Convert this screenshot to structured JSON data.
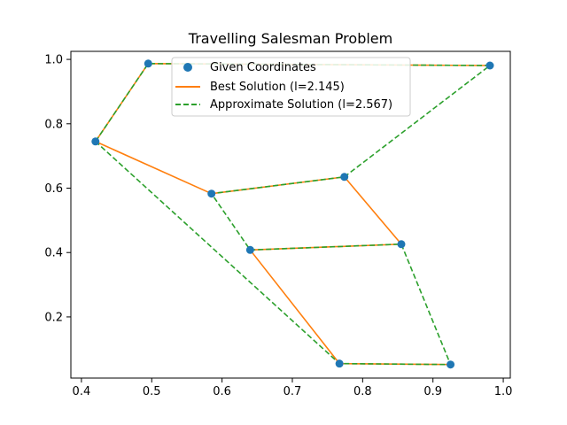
{
  "chart_data": {
    "type": "line",
    "title": "Travelling Salesman Problem",
    "xlabel": "",
    "ylabel": "",
    "xlim": [
      0.385,
      1.01
    ],
    "ylim": [
      0.01,
      1.025
    ],
    "xticks": [
      0.4,
      0.5,
      0.6,
      0.7,
      0.8,
      0.9,
      1.0
    ],
    "xtick_labels": [
      "0.4",
      "0.5",
      "0.6",
      "0.7",
      "0.8",
      "0.9",
      "1.0"
    ],
    "yticks": [
      0.2,
      0.4,
      0.6,
      0.8,
      1.0
    ],
    "ytick_labels": [
      "0.2",
      "0.4",
      "0.6",
      "0.8",
      "1.0"
    ],
    "grid": false,
    "legend_position": "top-center",
    "points": [
      {
        "x": 0.495,
        "y": 0.987
      },
      {
        "x": 0.981,
        "y": 0.981
      },
      {
        "x": 0.42,
        "y": 0.745
      },
      {
        "x": 0.774,
        "y": 0.635
      },
      {
        "x": 0.585,
        "y": 0.583
      },
      {
        "x": 0.855,
        "y": 0.426
      },
      {
        "x": 0.64,
        "y": 0.408
      },
      {
        "x": 0.767,
        "y": 0.055
      },
      {
        "x": 0.925,
        "y": 0.052
      }
    ],
    "series": [
      {
        "name": "Given Coordinates",
        "kind": "scatter",
        "color": "#1f77b4",
        "x": [
          0.495,
          0.981,
          0.42,
          0.774,
          0.585,
          0.855,
          0.64,
          0.767,
          0.925
        ],
        "y": [
          0.987,
          0.981,
          0.745,
          0.635,
          0.583,
          0.426,
          0.408,
          0.055,
          0.052
        ]
      },
      {
        "name": "Best Solution (l=2.145)",
        "kind": "line",
        "style": "solid",
        "color": "#ff7f0e",
        "x": [
          0.981,
          0.495,
          0.42,
          0.585,
          0.774,
          0.855,
          0.64,
          0.767,
          0.925
        ],
        "y": [
          0.981,
          0.987,
          0.745,
          0.583,
          0.635,
          0.426,
          0.408,
          0.055,
          0.052
        ]
      },
      {
        "name": "Approximate Solution (l=2.567)",
        "kind": "line",
        "style": "dashed",
        "color": "#2ca02c",
        "x": [
          0.42,
          0.495,
          0.981,
          0.774,
          0.585,
          0.64,
          0.855,
          0.925,
          0.767,
          0.42
        ],
        "y": [
          0.745,
          0.987,
          0.981,
          0.635,
          0.583,
          0.408,
          0.426,
          0.052,
          0.055,
          0.745
        ]
      }
    ]
  }
}
